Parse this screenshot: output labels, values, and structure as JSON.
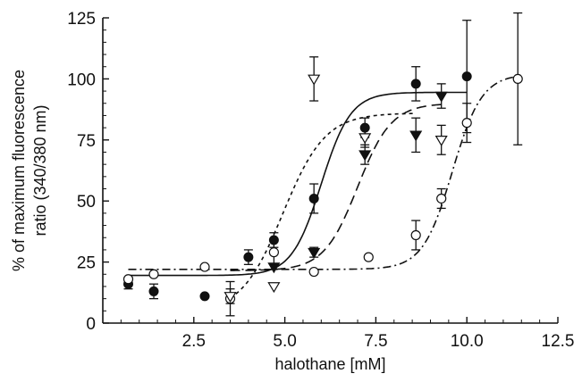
{
  "chart_data": {
    "type": "scatter",
    "title": "",
    "xlabel": "halothane [mM]",
    "ylabel": "% of maximum fluorescence ratio (340/380 nm)",
    "ylabel_lines": [
      "% of maximum fluorescence",
      "ratio (340/380 nm)"
    ],
    "xlim": [
      0,
      12.5
    ],
    "ylim": [
      0,
      125
    ],
    "xticks": [
      2.5,
      5.0,
      7.5,
      10.0,
      12.5
    ],
    "xtick_labels": [
      "2.5",
      "5.0",
      "7.5",
      "10.0",
      "12.5"
    ],
    "yticks": [
      0,
      25,
      50,
      75,
      100,
      125
    ],
    "ytick_labels": [
      "0",
      "25",
      "50",
      "75",
      "100",
      "125"
    ],
    "grid": false,
    "legend": "none",
    "series": [
      {
        "marker": "filled-circle",
        "points": [
          {
            "x": 0.7,
            "y": 16,
            "err": 2
          },
          {
            "x": 1.4,
            "y": 13,
            "err": 3
          },
          {
            "x": 2.8,
            "y": 11,
            "err": 0
          },
          {
            "x": 4.0,
            "y": 27,
            "err": 3
          },
          {
            "x": 4.7,
            "y": 34,
            "err": 3
          },
          {
            "x": 5.8,
            "y": 51,
            "err": 6
          },
          {
            "x": 7.2,
            "y": 80,
            "err": 4
          },
          {
            "x": 8.6,
            "y": 98,
            "err": 7
          },
          {
            "x": 10.0,
            "y": 101,
            "err": 23
          }
        ],
        "fit": {
          "style": "solid",
          "bottom": 19.5,
          "top": 94.5,
          "x50": 6.0,
          "slope": 0.28,
          "xrange": [
            0.7,
            10.0
          ]
        }
      },
      {
        "marker": "open-circle",
        "points": [
          {
            "x": 0.7,
            "y": 18,
            "err": 0
          },
          {
            "x": 1.4,
            "y": 20,
            "err": 0
          },
          {
            "x": 2.8,
            "y": 23,
            "err": 0
          },
          {
            "x": 3.5,
            "y": 10,
            "err": 7
          },
          {
            "x": 4.7,
            "y": 29,
            "err": 5
          },
          {
            "x": 5.8,
            "y": 21,
            "err": 0
          },
          {
            "x": 7.3,
            "y": 27,
            "err": 0
          },
          {
            "x": 8.6,
            "y": 36,
            "err": 6
          },
          {
            "x": 9.3,
            "y": 51,
            "err": 4
          },
          {
            "x": 10.0,
            "y": 82,
            "err": 8
          },
          {
            "x": 11.4,
            "y": 100,
            "err": 27
          }
        ],
        "fit": {
          "style": "dash-dot",
          "bottom": 22,
          "top": 102,
          "x50": 9.6,
          "slope": 0.28,
          "xrange": [
            0.7,
            11.4
          ]
        }
      },
      {
        "marker": "filled-triangle-down",
        "points": [
          {
            "x": 4.7,
            "y": 23,
            "err": 0
          },
          {
            "x": 5.8,
            "y": 29,
            "err": 2
          },
          {
            "x": 7.2,
            "y": 69,
            "err": 4
          },
          {
            "x": 8.6,
            "y": 77,
            "err": 7
          },
          {
            "x": 9.3,
            "y": 93,
            "err": 5
          }
        ],
        "fit": {
          "style": "long-dash",
          "bottom": 21.5,
          "top": 90,
          "x50": 7.0,
          "slope": 0.32,
          "xrange": [
            3.5,
            9.3
          ]
        }
      },
      {
        "marker": "open-triangle-down",
        "points": [
          {
            "x": 3.5,
            "y": 11,
            "err": 3
          },
          {
            "x": 4.7,
            "y": 15,
            "err": 0
          },
          {
            "x": 5.8,
            "y": 100,
            "err": 9
          },
          {
            "x": 7.2,
            "y": 76,
            "err": 4
          },
          {
            "x": 9.3,
            "y": 75,
            "err": 6
          }
        ],
        "fit": {
          "style": "short-dash",
          "bottom": 4,
          "top": 86,
          "x50": 4.95,
          "slope": 0.4,
          "xrange": [
            3.5,
            8.6
          ]
        }
      }
    ]
  }
}
